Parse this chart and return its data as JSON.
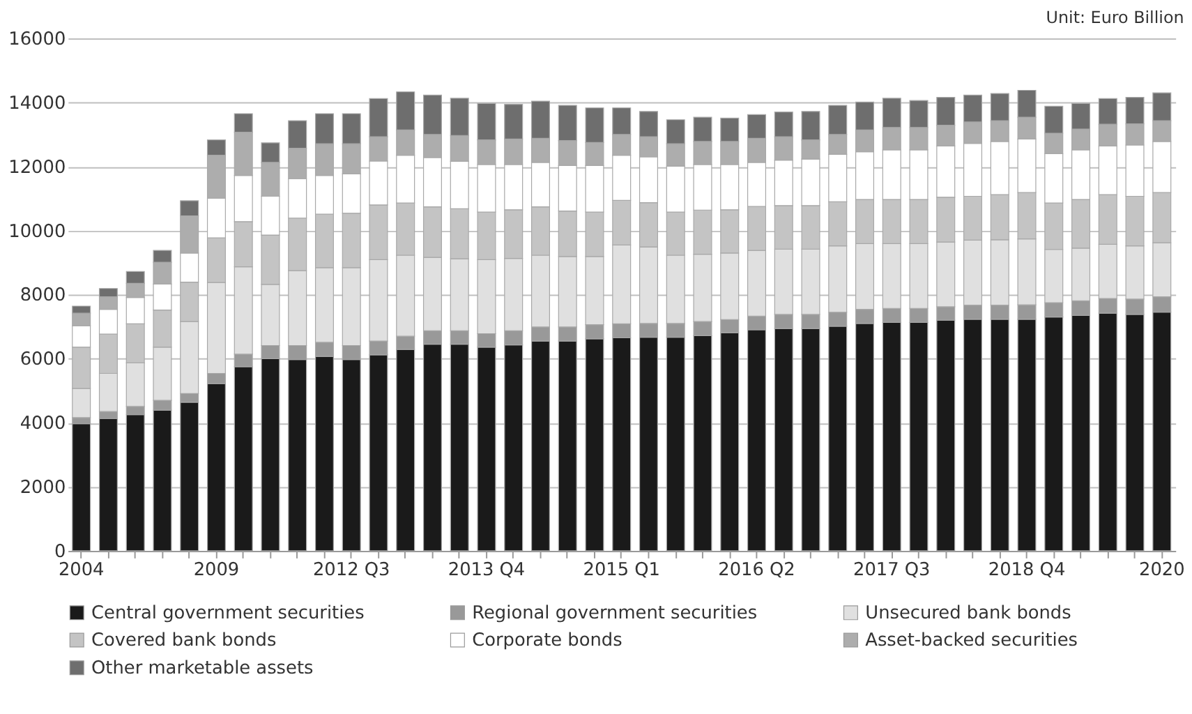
{
  "chart_data": {
    "type": "bar",
    "stacked": true,
    "annotations": [
      "Unit: Euro Billion"
    ],
    "categories": [
      "2004",
      null,
      null,
      null,
      null,
      "2009",
      null,
      null,
      null,
      null,
      "2012 Q3",
      null,
      null,
      null,
      null,
      "2013 Q4",
      null,
      null,
      null,
      null,
      "2015 Q1",
      null,
      null,
      null,
      null,
      "2016 Q2",
      null,
      null,
      null,
      null,
      "2017 Q3",
      null,
      null,
      null,
      null,
      "2018 Q4",
      null,
      null,
      null,
      null,
      "2020"
    ],
    "ylim": [
      0,
      16000
    ],
    "yticks": [
      0,
      2000,
      4000,
      6000,
      8000,
      10000,
      12000,
      14000,
      16000
    ],
    "grid": "y",
    "legend": "bottom",
    "series": [
      {
        "name": "Central government securities",
        "color": "#1a1a1a",
        "values": [
          3970,
          4130,
          4250,
          4390,
          4640,
          5220,
          5750,
          6000,
          5970,
          6070,
          5970,
          6120,
          6290,
          6450,
          6450,
          6360,
          6430,
          6550,
          6550,
          6620,
          6650,
          6670,
          6670,
          6720,
          6810,
          6900,
          6940,
          6940,
          7010,
          7100,
          7130,
          7130,
          7200,
          7230,
          7230,
          7230,
          7300,
          7350,
          7420,
          7380,
          7450
        ]
      },
      {
        "name": "Regional government securities",
        "color": "#999999",
        "values": [
          190,
          220,
          260,
          310,
          270,
          320,
          390,
          410,
          440,
          440,
          440,
          430,
          410,
          420,
          420,
          420,
          440,
          440,
          440,
          440,
          440,
          430,
          430,
          440,
          410,
          430,
          440,
          440,
          440,
          440,
          440,
          440,
          420,
          440,
          440,
          450,
          450,
          460,
          460,
          480,
          480
        ]
      },
      {
        "name": "Unsecured bank bonds",
        "color": "#e0e0e0",
        "values": [
          910,
          1190,
          1360,
          1660,
          2250,
          2840,
          2730,
          1910,
          2340,
          2330,
          2430,
          2540,
          2530,
          2290,
          2250,
          2310,
          2260,
          2240,
          2200,
          2130,
          2460,
          2390,
          2130,
          2100,
          2080,
          2050,
          2040,
          2040,
          2070,
          2050,
          2020,
          2020,
          2020,
          2030,
          2040,
          2060,
          1660,
          1640,
          1690,
          1660,
          1690
        ]
      },
      {
        "name": "Covered bank bonds",
        "color": "#c4c4c4",
        "values": [
          1290,
          1230,
          1220,
          1160,
          1230,
          1390,
          1410,
          1540,
          1640,
          1670,
          1700,
          1710,
          1630,
          1580,
          1560,
          1490,
          1520,
          1510,
          1420,
          1390,
          1390,
          1380,
          1350,
          1380,
          1350,
          1370,
          1360,
          1360,
          1380,
          1380,
          1380,
          1380,
          1400,
          1370,
          1410,
          1450,
          1450,
          1520,
          1550,
          1550,
          1570
        ]
      },
      {
        "name": "Corporate bonds",
        "color": "#ffffff",
        "values": [
          670,
          770,
          820,
          810,
          910,
          1240,
          1440,
          1210,
          1230,
          1210,
          1230,
          1370,
          1490,
          1540,
          1480,
          1480,
          1410,
          1390,
          1420,
          1450,
          1410,
          1430,
          1430,
          1420,
          1410,
          1380,
          1420,
          1450,
          1480,
          1490,
          1550,
          1550,
          1600,
          1650,
          1660,
          1670,
          1540,
          1550,
          1520,
          1600,
          1590
        ]
      },
      {
        "name": "Asset-backed securities",
        "color": "#adadad",
        "values": [
          390,
          390,
          440,
          680,
          1160,
          1340,
          1350,
          1060,
          950,
          990,
          940,
          760,
          790,
          720,
          810,
          770,
          800,
          750,
          780,
          720,
          650,
          630,
          700,
          720,
          720,
          750,
          730,
          600,
          620,
          680,
          700,
          700,
          650,
          670,
          650,
          680,
          640,
          650,
          680,
          660,
          650
        ]
      },
      {
        "name": "Other marketable assets",
        "color": "#6e6e6e",
        "values": [
          220,
          260,
          370,
          370,
          470,
          480,
          580,
          610,
          860,
          940,
          940,
          1190,
          1190,
          1230,
          1160,
          1140,
          1080,
          1160,
          1100,
          1080,
          830,
          790,
          750,
          760,
          730,
          740,
          770,
          890,
          910,
          870,
          910,
          840,
          870,
          840,
          850,
          840,
          840,
          800,
          800,
          830,
          870
        ]
      }
    ]
  }
}
